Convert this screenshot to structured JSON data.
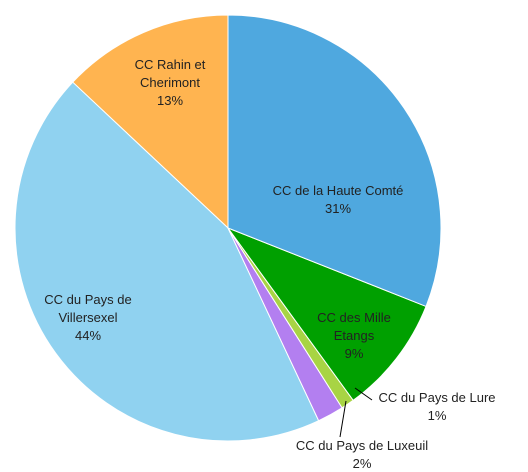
{
  "chart_data": {
    "type": "pie",
    "categories": [
      "CC de la Haute Comté",
      "CC des Mille Etangs",
      "CC du Pays de Lure",
      "CC du Pays de Luxeuil",
      "CC du Pays de Villersexel",
      "CC Rahin et Cherimont"
    ],
    "values": [
      31,
      9,
      1,
      2,
      44,
      13
    ],
    "value_labels": [
      "31%",
      "9%",
      "1%",
      "2%",
      "44%",
      "13%"
    ],
    "colors": [
      "#4fa8df",
      "#00a000",
      "#a8d444",
      "#b37ff0",
      "#90d2f0",
      "#ffb450"
    ]
  }
}
